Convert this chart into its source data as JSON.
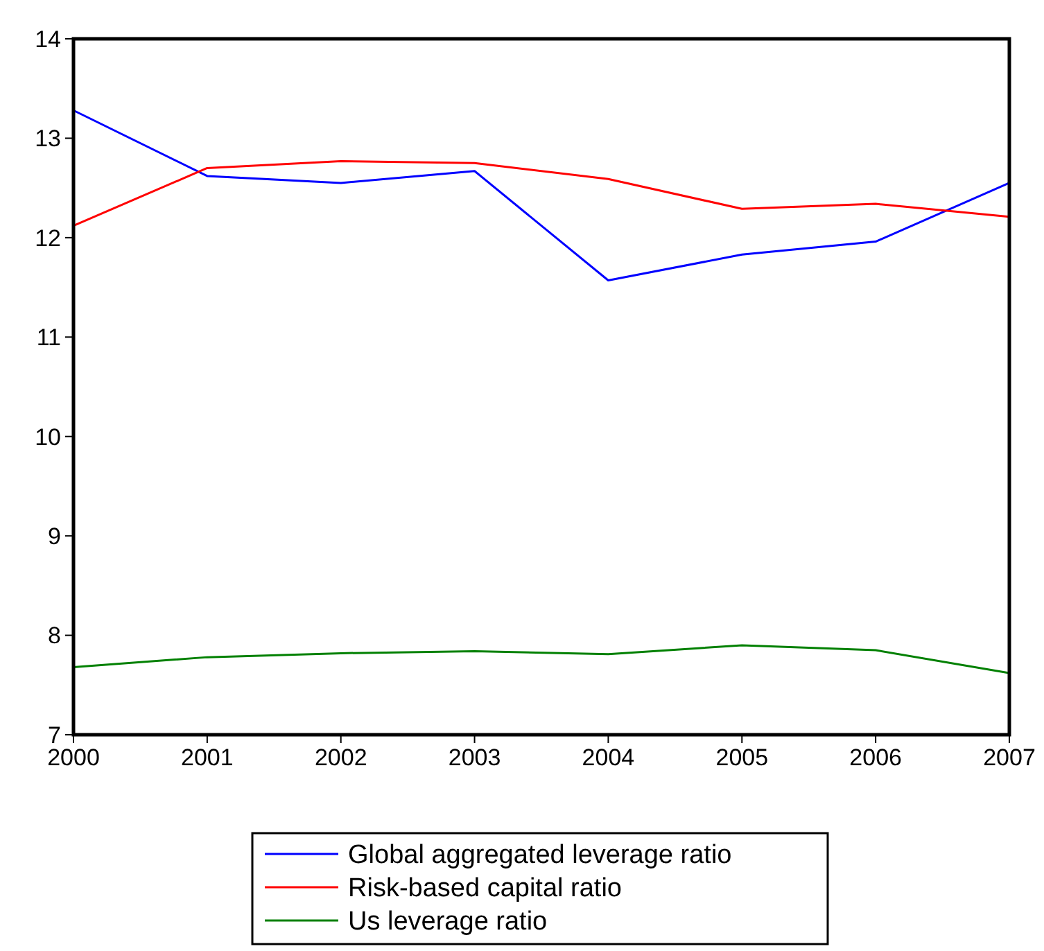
{
  "chart_data": {
    "type": "line",
    "x": [
      2000,
      2001,
      2002,
      2003,
      2004,
      2005,
      2006,
      2007
    ],
    "series": [
      {
        "name": "Global aggregated leverage ratio",
        "color": "#0000ff",
        "values": [
          13.28,
          12.62,
          12.55,
          12.67,
          11.57,
          11.83,
          11.96,
          12.55
        ]
      },
      {
        "name": "Risk-based capital ratio",
        "color": "#ff0000",
        "values": [
          12.12,
          12.7,
          12.77,
          12.75,
          12.59,
          12.29,
          12.34,
          12.21
        ]
      },
      {
        "name": "Us leverage ratio",
        "color": "#008000",
        "values": [
          7.68,
          7.78,
          7.82,
          7.84,
          7.81,
          7.9,
          7.85,
          7.62
        ]
      }
    ],
    "xlim": [
      2000,
      2007
    ],
    "xticks": [
      2000,
      2001,
      2002,
      2003,
      2004,
      2005,
      2006,
      2007
    ],
    "ylim": [
      7,
      14
    ],
    "yticks": [
      7,
      8,
      9,
      10,
      11,
      12,
      13,
      14
    ],
    "grid": false,
    "legend": "bottom",
    "marker": "none",
    "line_style": "solid"
  }
}
